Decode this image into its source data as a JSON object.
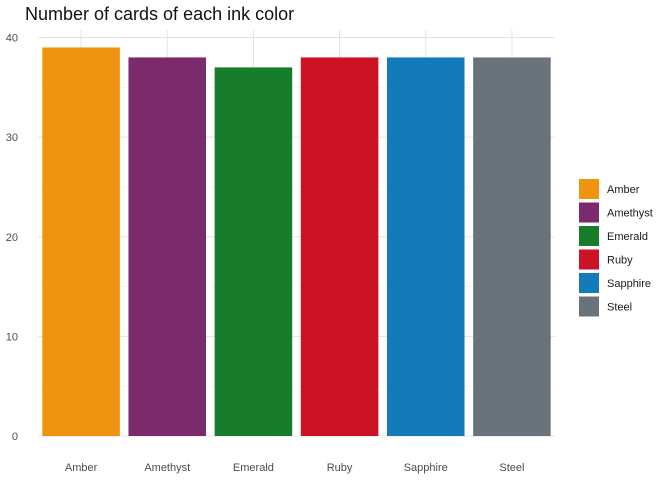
{
  "chart_data": {
    "type": "bar",
    "title": "Number of cards of each ink color",
    "xlabel": "",
    "ylabel": "",
    "categories": [
      "Amber",
      "Amethyst",
      "Emerald",
      "Ruby",
      "Sapphire",
      "Steel"
    ],
    "values": [
      39,
      38,
      37,
      38,
      38,
      38
    ],
    "colors": [
      "#F0930E",
      "#7B2A6C",
      "#177D2B",
      "#CC1225",
      "#137BBA",
      "#6A737B"
    ],
    "ylim": [
      0,
      40
    ],
    "yticks": [
      0,
      10,
      20,
      30,
      40
    ],
    "grid": true,
    "legend": {
      "position": "right",
      "entries": [
        "Amber",
        "Amethyst",
        "Emerald",
        "Ruby",
        "Sapphire",
        "Steel"
      ]
    }
  }
}
